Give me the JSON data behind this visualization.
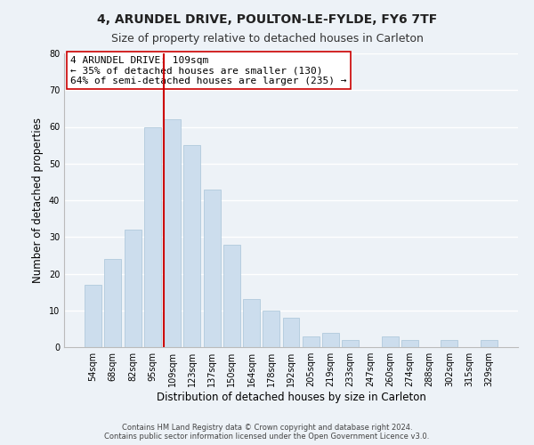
{
  "title": "4, ARUNDEL DRIVE, POULTON-LE-FYLDE, FY6 7TF",
  "subtitle": "Size of property relative to detached houses in Carleton",
  "xlabel": "Distribution of detached houses by size in Carleton",
  "ylabel": "Number of detached properties",
  "bar_labels": [
    "54sqm",
    "68sqm",
    "82sqm",
    "95sqm",
    "109sqm",
    "123sqm",
    "137sqm",
    "150sqm",
    "164sqm",
    "178sqm",
    "192sqm",
    "205sqm",
    "219sqm",
    "233sqm",
    "247sqm",
    "260sqm",
    "274sqm",
    "288sqm",
    "302sqm",
    "315sqm",
    "329sqm"
  ],
  "bar_values": [
    17,
    24,
    32,
    60,
    62,
    55,
    43,
    28,
    13,
    10,
    8,
    3,
    4,
    2,
    0,
    3,
    2,
    0,
    2,
    0,
    2
  ],
  "bar_color": "#ccdded",
  "bar_edge_color": "#a8c4d8",
  "vline_color": "#cc0000",
  "vline_x_index": 4,
  "ylim": [
    0,
    80
  ],
  "yticks": [
    0,
    10,
    20,
    30,
    40,
    50,
    60,
    70,
    80
  ],
  "annotation_title": "4 ARUNDEL DRIVE: 109sqm",
  "annotation_line1": "← 35% of detached houses are smaller (130)",
  "annotation_line2": "64% of semi-detached houses are larger (235) →",
  "annotation_box_color": "#ffffff",
  "annotation_box_edge": "#cc0000",
  "footer1": "Contains HM Land Registry data © Crown copyright and database right 2024.",
  "footer2": "Contains public sector information licensed under the Open Government Licence v3.0.",
  "bg_color": "#edf2f7",
  "grid_color": "#ffffff",
  "title_fontsize": 10,
  "subtitle_fontsize": 9,
  "tick_fontsize": 7,
  "ylabel_fontsize": 8.5,
  "xlabel_fontsize": 8.5,
  "footer_fontsize": 6,
  "annot_fontsize": 8
}
